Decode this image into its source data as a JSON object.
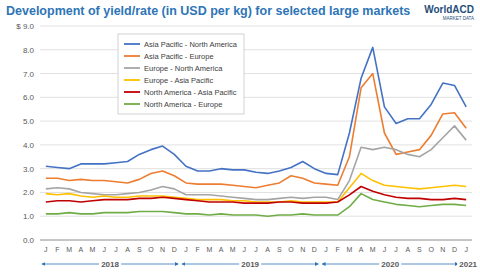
{
  "chart_data": {
    "type": "line",
    "title": "Development of yield/rate (in USD per kg) for selected large markets",
    "source": "WorldACD",
    "source_tagline": "MARKET DATA",
    "categories": [
      "J",
      "F",
      "M",
      "A",
      "M",
      "J",
      "J",
      "A",
      "S",
      "O",
      "N",
      "D",
      "J",
      "F",
      "M",
      "A",
      "M",
      "J",
      "J",
      "A",
      "S",
      "O",
      "N",
      "D",
      "J",
      "F",
      "M",
      "A",
      "M",
      "J",
      "J",
      "A",
      "S",
      "O",
      "N",
      "D",
      "J"
    ],
    "year_labels": [
      "2018",
      "2019",
      "2020",
      "2021"
    ],
    "ylim": [
      0,
      9
    ],
    "yticks": [
      {
        "value": 0,
        "label": "0.0"
      },
      {
        "value": 1,
        "label": "1.0"
      },
      {
        "value": 2,
        "label": "2.0"
      },
      {
        "value": 3,
        "label": "3.0"
      },
      {
        "value": 4,
        "label": "4.0"
      },
      {
        "value": 5,
        "label": "5.0"
      },
      {
        "value": 6,
        "label": "6.0"
      },
      {
        "value": 7,
        "label": "7.0"
      },
      {
        "value": 8,
        "label": "8.0"
      },
      {
        "value": 9,
        "label": "$ 9.0"
      }
    ],
    "grid": true,
    "legend": "upper left",
    "series": [
      {
        "name": "Asia Pacific - North America",
        "color": "#4472c4",
        "values": [
          3.1,
          3.05,
          3.0,
          3.2,
          3.2,
          3.2,
          3.25,
          3.3,
          3.6,
          3.8,
          3.95,
          3.6,
          3.1,
          2.9,
          2.9,
          3.0,
          2.95,
          2.95,
          2.85,
          2.8,
          2.9,
          3.05,
          3.3,
          3.0,
          2.8,
          2.75,
          4.5,
          6.8,
          8.1,
          5.6,
          4.9,
          5.1,
          5.1,
          5.7,
          6.6,
          6.5,
          5.6
        ]
      },
      {
        "name": "Asia Pacific - Europe",
        "color": "#ed7d31",
        "values": [
          2.6,
          2.6,
          2.5,
          2.55,
          2.5,
          2.5,
          2.45,
          2.4,
          2.55,
          2.8,
          2.9,
          2.7,
          2.4,
          2.35,
          2.35,
          2.35,
          2.3,
          2.25,
          2.2,
          2.3,
          2.4,
          2.7,
          2.6,
          2.4,
          2.35,
          2.3,
          3.5,
          6.4,
          7.0,
          4.5,
          3.6,
          3.7,
          3.8,
          4.4,
          5.3,
          5.35,
          4.7
        ]
      },
      {
        "name": "Europe - North America",
        "color": "#a5a5a5",
        "values": [
          2.15,
          2.2,
          2.15,
          2.0,
          1.95,
          1.9,
          1.9,
          1.95,
          2.0,
          2.1,
          2.25,
          2.15,
          1.9,
          1.9,
          1.9,
          1.85,
          1.8,
          1.75,
          1.7,
          1.7,
          1.75,
          1.8,
          1.75,
          1.8,
          1.8,
          1.7,
          2.5,
          3.9,
          3.8,
          3.9,
          3.8,
          3.6,
          3.5,
          3.8,
          4.3,
          4.8,
          4.2
        ]
      },
      {
        "name": "Europe - Asia Pacific",
        "color": "#ffc000",
        "values": [
          1.95,
          1.9,
          1.95,
          1.85,
          1.8,
          1.85,
          1.8,
          1.8,
          1.85,
          1.85,
          1.85,
          1.8,
          1.75,
          1.7,
          1.7,
          1.7,
          1.65,
          1.65,
          1.6,
          1.6,
          1.6,
          1.65,
          1.6,
          1.6,
          1.6,
          1.6,
          2.2,
          2.8,
          2.5,
          2.3,
          2.25,
          2.2,
          2.15,
          2.2,
          2.25,
          2.3,
          2.25
        ]
      },
      {
        "name": "North America - Asia Pacific",
        "color": "#c00000",
        "values": [
          1.6,
          1.65,
          1.65,
          1.6,
          1.65,
          1.7,
          1.7,
          1.7,
          1.75,
          1.75,
          1.8,
          1.75,
          1.7,
          1.65,
          1.6,
          1.6,
          1.6,
          1.55,
          1.55,
          1.55,
          1.6,
          1.6,
          1.55,
          1.55,
          1.55,
          1.6,
          1.9,
          2.25,
          2.05,
          1.9,
          1.8,
          1.75,
          1.75,
          1.7,
          1.7,
          1.75,
          1.7
        ]
      },
      {
        "name": "North America - Europe",
        "color": "#70ad47",
        "values": [
          1.1,
          1.1,
          1.15,
          1.1,
          1.1,
          1.15,
          1.15,
          1.15,
          1.2,
          1.2,
          1.2,
          1.15,
          1.1,
          1.1,
          1.05,
          1.1,
          1.05,
          1.05,
          1.05,
          1.0,
          1.05,
          1.05,
          1.1,
          1.05,
          1.05,
          1.05,
          1.4,
          1.95,
          1.7,
          1.6,
          1.5,
          1.45,
          1.4,
          1.45,
          1.5,
          1.5,
          1.45
        ]
      }
    ]
  }
}
